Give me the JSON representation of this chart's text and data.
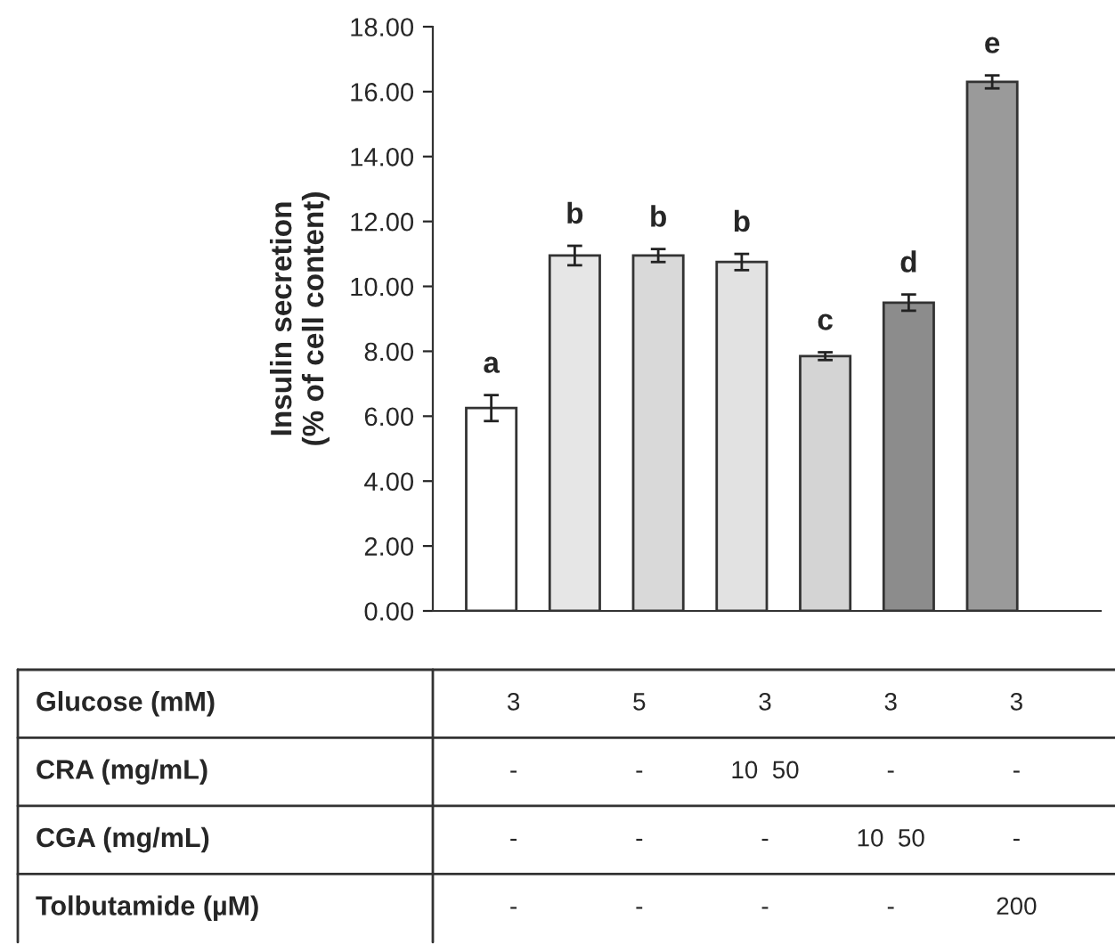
{
  "chart_data": {
    "type": "bar",
    "ylabel": "Insulin secretion\n(% of cell content)",
    "categories": [
      null,
      null,
      null,
      null,
      null,
      null,
      null
    ],
    "values": [
      6.25,
      10.95,
      10.95,
      10.75,
      7.85,
      9.5,
      16.3
    ],
    "errors": [
      0.4,
      0.3,
      0.2,
      0.25,
      0.12,
      0.25,
      0.2
    ],
    "colors": [
      "#ffffff",
      "#e6e6e6",
      "#d9d9d9",
      "#e2e2e2",
      "#d4d4d4",
      "#8c8c8c",
      "#9a9a9a"
    ],
    "value_labels": [
      "a",
      "b",
      "b",
      "b",
      "c",
      "d",
      "e"
    ],
    "ylim": [
      0,
      18
    ],
    "yticks": [
      {
        "value": 0,
        "label": "0.00"
      },
      {
        "value": 2,
        "label": "2.00"
      },
      {
        "value": 4,
        "label": "4.00"
      },
      {
        "value": 6,
        "label": "6.00"
      },
      {
        "value": 8,
        "label": "8.00"
      },
      {
        "value": 10,
        "label": "10.00"
      },
      {
        "value": 12,
        "label": "12.00"
      },
      {
        "value": 14,
        "label": "14.00"
      },
      {
        "value": 16,
        "label": "16.00"
      },
      {
        "value": 18,
        "label": "18.00"
      }
    ],
    "annotations": [
      "Glucose (mM)",
      "3",
      "5",
      "3",
      "3",
      "3",
      "CRA (mg/mL)",
      "-",
      "-",
      "10  50",
      "-",
      "-",
      "CGA (mg/mL)",
      "-",
      "-",
      "-",
      "10  50",
      "-",
      "Tolbutamide (µM)",
      "-",
      "-",
      "-",
      "-",
      "200"
    ],
    "grid": false,
    "legend": false
  }
}
